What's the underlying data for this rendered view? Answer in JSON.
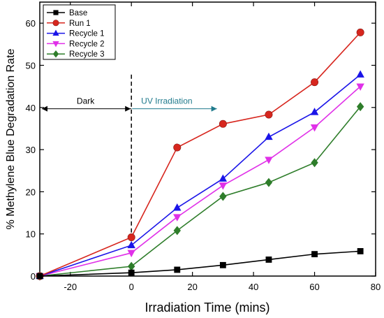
{
  "chart_data": {
    "type": "line",
    "xlabel": "Irradiation Time (mins)",
    "ylabel": "% Methylene Blue Degradation Rate",
    "xlim": [
      -30,
      80
    ],
    "ylim": [
      0,
      65
    ],
    "x_ticks": [
      -20,
      0,
      20,
      40,
      60,
      80
    ],
    "y_ticks": [
      0,
      10,
      20,
      30,
      40,
      50,
      60
    ],
    "grid": false,
    "legend_position": "top-left",
    "x": [
      -30,
      0,
      15,
      30,
      45,
      60,
      75
    ],
    "series": [
      {
        "name": "Base",
        "color": "#000000",
        "marker": "square",
        "values": [
          0,
          0.8,
          1.5,
          2.6,
          3.9,
          5.2,
          5.9
        ]
      },
      {
        "name": "Run 1",
        "color": "#d7261e",
        "marker": "circle",
        "values": [
          0,
          9.2,
          30.5,
          36.1,
          38.3,
          46.0,
          57.8
        ]
      },
      {
        "name": "Recycle 1",
        "color": "#1a14e8",
        "marker": "triangle-up",
        "values": [
          0,
          7.3,
          16.2,
          23.1,
          33.0,
          38.9,
          47.8
        ]
      },
      {
        "name": "Recycle 2",
        "color": "#e030e8",
        "marker": "triangle-down",
        "values": [
          0,
          5.5,
          14.0,
          21.5,
          27.6,
          35.3,
          45.0
        ]
      },
      {
        "name": "Recycle 3",
        "color": "#2e7d2a",
        "marker": "diamond",
        "values": [
          0,
          2.3,
          10.8,
          18.9,
          22.2,
          26.9,
          40.2
        ]
      }
    ],
    "annotations": {
      "dark_label": "Dark",
      "uv_label": "UV Irradiation",
      "uv_color": "#1f7a8c"
    }
  }
}
